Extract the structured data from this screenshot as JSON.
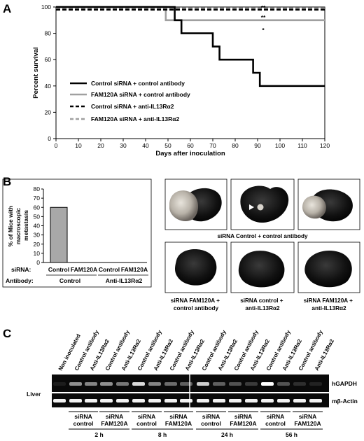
{
  "panels": {
    "A": "A",
    "B": "B",
    "C": "C"
  },
  "chart_data": [
    {
      "type": "line",
      "step": true,
      "xlabel": "Days after inoculation",
      "ylabel": "Percent survival",
      "xlim": [
        0,
        120
      ],
      "ylim": [
        0,
        100
      ],
      "xticks": [
        0,
        10,
        20,
        30,
        40,
        50,
        60,
        70,
        80,
        90,
        100,
        110,
        120
      ],
      "yticks": [
        0,
        20,
        40,
        60,
        80,
        100
      ],
      "series": [
        {
          "name": "Control siRNA + control antibody",
          "color": "#000000",
          "dash": false,
          "points": [
            [
              0,
              100
            ],
            [
              53,
              100
            ],
            [
              53,
              90
            ],
            [
              56,
              90
            ],
            [
              56,
              80
            ],
            [
              70,
              80
            ],
            [
              70,
              70
            ],
            [
              73,
              70
            ],
            [
              73,
              60
            ],
            [
              88,
              60
            ],
            [
              88,
              50
            ],
            [
              91,
              50
            ],
            [
              91,
              40
            ],
            [
              120,
              40
            ]
          ]
        },
        {
          "name": "FAM120A siRNA + control antibody",
          "color": "#a0a0a0",
          "dash": false,
          "points": [
            [
              0,
              100
            ],
            [
              49,
              100
            ],
            [
              49,
              90
            ],
            [
              120,
              90
            ]
          ]
        },
        {
          "name": "Control siRNA + anti-IL13Rα2",
          "color": "#000000",
          "dash": true,
          "points": [
            [
              0,
              98
            ],
            [
              120,
              98
            ]
          ]
        },
        {
          "name": "FAM120A siRNA + anti-IL13Rα2",
          "color": "#a0a0a0",
          "dash": true,
          "points": [
            [
              0,
              99
            ],
            [
              120,
              99
            ]
          ]
        }
      ],
      "annotations": [
        "**",
        "**",
        "*"
      ]
    },
    {
      "type": "bar",
      "ylabel": "% of Mice with macroscopic metastasis",
      "ylabel_lines": [
        "% of Mice with",
        "macroscopic",
        "metastasis"
      ],
      "ylim": [
        0,
        80
      ],
      "yticks": [
        0,
        10,
        20,
        30,
        40,
        50,
        60,
        70,
        80
      ],
      "categories": [
        "Control",
        "FAM120A",
        "Control",
        "FAM120A"
      ],
      "values": [
        60,
        0,
        0,
        0
      ],
      "row_labels": {
        "sirna": "siRNA:",
        "antibody": "Antibody:"
      },
      "groups": [
        "Control",
        "Anti-IL13Rα2"
      ]
    }
  ],
  "photos": {
    "top_caption": "siRNA Control + control antibody",
    "bottom_captions": [
      [
        "siRNA FAM120A +",
        "control antibody"
      ],
      [
        "siRNA control +",
        "anti-IL13Rα2"
      ],
      [
        "siRNA FAM120A +",
        "anti-IL13Rα2"
      ]
    ]
  },
  "gel": {
    "lanes": [
      "Non inoculated",
      "Control antibody",
      "Anti-IL13Rα2",
      "Control antibody",
      "Anti-IL13Rα2",
      "Control antibody",
      "Anti-IL13Rα2",
      "Control antibody",
      "Anti-IL13Rα2",
      "Control antibody",
      "Anti-IL13Rα2",
      "Control antibody",
      "Anti-IL13Rα2",
      "Control antibody",
      "Anti-IL13Rα2",
      "Control antibody",
      "Anti-IL13Rα2"
    ],
    "tissue": "Liver",
    "band_labels": [
      "hGAPDH",
      "mβ-Actin"
    ],
    "sirna_groups": [
      [
        "siRNA",
        "control"
      ],
      [
        "siRNA",
        "FAM120A"
      ],
      [
        "siRNA",
        "control"
      ],
      [
        "siRNA",
        "FAM120A"
      ],
      [
        "siRNA",
        "control"
      ],
      [
        "siRNA",
        "FAM120A"
      ],
      [
        "siRNA",
        "control"
      ],
      [
        "siRNA",
        "FAM120A"
      ]
    ],
    "timepoints": [
      "2 h",
      "8 h",
      "24 h",
      "56 h"
    ]
  }
}
